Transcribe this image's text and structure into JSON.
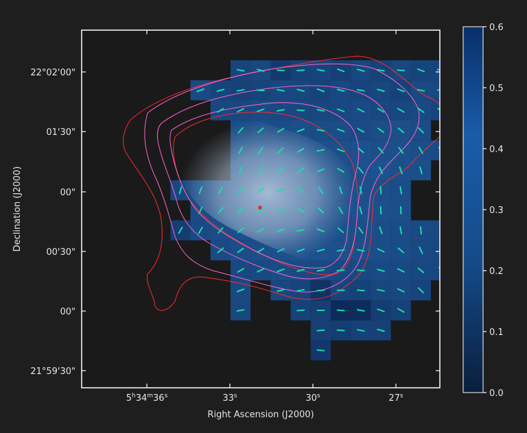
{
  "chart_data": {
    "type": "heatmap",
    "title": "",
    "xlabel": "Right Ascension (J2000)",
    "ylabel": "Declination (J2000)",
    "x_ticks": [
      {
        "label": "5h34m36s",
        "main": "5",
        "sup1": "h",
        "mid": "34",
        "sup2": "m",
        "end": "36",
        "sup3": "s"
      },
      {
        "label": "33s",
        "main": "33",
        "sup3": "s"
      },
      {
        "label": "30s",
        "main": "30",
        "sup3": "s"
      },
      {
        "label": "27s",
        "main": "27",
        "sup3": "s"
      }
    ],
    "y_ticks": [
      "22°02'00\"",
      "01'30\"",
      "00\"",
      "00'30\"",
      "00\"",
      "21°59'30\""
    ],
    "colorbar": {
      "min": 0.0,
      "max": 0.6,
      "ticks": [
        "0.6",
        "0.5",
        "0.4",
        "0.3",
        "0.2",
        "0.1",
        "0.0"
      ],
      "colormap": "Blues",
      "dark": "#0a2a5e",
      "light": "#dbe9f6"
    },
    "colors": {
      "frame": "#ffffff",
      "background": "#1e1e1e",
      "plot_background": "#1a1a1a",
      "contour_red": "#ff2a2a",
      "contour_pink": "#ff66cc",
      "vectors": "#19e0a8",
      "nebula": "#c8d6e6"
    },
    "grid_rows": [
      {
        "row": 0,
        "cols": [
          5,
          6,
          7,
          8,
          9,
          10,
          11,
          12,
          13,
          14,
          15
        ]
      },
      {
        "row": 1,
        "cols": [
          3,
          4,
          5,
          6,
          7,
          8,
          9,
          10,
          11,
          12,
          13,
          14,
          15
        ]
      },
      {
        "row": 2,
        "cols": [
          4,
          5,
          6,
          7,
          8,
          9,
          10,
          11,
          12,
          13,
          14,
          15,
          16
        ]
      },
      {
        "row": 3,
        "cols": [
          5,
          6,
          7,
          8,
          9,
          10,
          11,
          12,
          13,
          14,
          16
        ]
      },
      {
        "row": 4,
        "cols": [
          5,
          6,
          7,
          8,
          9,
          10,
          11,
          12,
          13,
          14,
          15
        ]
      },
      {
        "row": 5,
        "cols": [
          5,
          6,
          7,
          8,
          9,
          10,
          11,
          12,
          13,
          14
        ]
      },
      {
        "row": 6,
        "cols": [
          2,
          3,
          4,
          5,
          6,
          7,
          8,
          9,
          10,
          11,
          12,
          13
        ]
      },
      {
        "row": 7,
        "cols": [
          3,
          4,
          5,
          6,
          7,
          8,
          9,
          10,
          11,
          12,
          13
        ]
      },
      {
        "row": 8,
        "cols": [
          2,
          3,
          4,
          5,
          6,
          7,
          8,
          9,
          10,
          11,
          12,
          13,
          14,
          15
        ]
      },
      {
        "row": 9,
        "cols": [
          4,
          5,
          6,
          7,
          8,
          9,
          10,
          11,
          12,
          13,
          14,
          15
        ]
      },
      {
        "row": 10,
        "cols": [
          5,
          6,
          7,
          8,
          9,
          10,
          11,
          12,
          13,
          14,
          15
        ]
      },
      {
        "row": 11,
        "cols": [
          5,
          7,
          8,
          9,
          10,
          11,
          12,
          13,
          14
        ]
      },
      {
        "row": 12,
        "cols": [
          5,
          8,
          9,
          10,
          11,
          12,
          13
        ]
      },
      {
        "row": 13,
        "cols": [
          9,
          10,
          11,
          12
        ]
      },
      {
        "row": 14,
        "cols": [
          9
        ]
      }
    ],
    "values": [
      [
        0.38,
        0.36,
        0.46,
        0.4,
        0.38,
        0.42,
        0.37,
        0.4,
        0.36,
        0.39,
        0.38
      ],
      [
        0.33,
        0.38,
        0.4,
        0.38,
        0.35,
        0.37,
        0.39,
        0.36,
        0.38,
        0.37,
        0.4,
        0.34,
        0.36
      ],
      [
        0.35,
        0.36,
        0.33,
        0.34,
        0.36,
        0.37,
        0.35,
        0.33,
        0.36,
        0.35,
        0.34,
        0.38,
        0.36
      ],
      [
        0.31,
        0.3,
        0.31,
        0.3,
        0.32,
        0.31,
        0.33,
        0.31,
        0.3,
        0.32,
        0.35
      ],
      [
        0.3,
        0.29,
        0.28,
        0.28,
        0.29,
        0.3,
        0.28,
        0.3,
        0.29,
        0.31,
        0.33
      ],
      [
        0.29,
        0.28,
        0.27,
        0.27,
        0.28,
        0.29,
        0.28,
        0.27,
        0.29,
        0.3
      ],
      [
        0.36,
        0.31,
        0.3,
        0.29,
        0.27,
        0.28,
        0.28,
        0.27,
        0.28,
        0.29,
        0.3,
        0.31
      ],
      [
        0.32,
        0.3,
        0.29,
        0.28,
        0.27,
        0.26,
        0.27,
        0.28,
        0.28,
        0.29,
        0.3
      ],
      [
        0.44,
        0.33,
        0.31,
        0.3,
        0.29,
        0.28,
        0.27,
        0.28,
        0.29,
        0.3,
        0.31,
        0.32,
        0.33,
        0.36
      ],
      [
        0.33,
        0.31,
        0.3,
        0.29,
        0.28,
        0.28,
        0.29,
        0.3,
        0.31,
        0.32,
        0.34,
        0.36
      ],
      [
        0.35,
        0.34,
        0.32,
        0.33,
        0.34,
        0.35,
        0.34,
        0.33,
        0.34,
        0.35,
        0.37
      ],
      [
        0.34,
        0.36,
        0.38,
        0.52,
        0.38,
        0.4,
        0.37,
        0.36,
        0.38
      ],
      [
        0.36,
        0.4,
        0.42,
        0.58,
        0.56,
        0.44,
        0.4
      ],
      [
        0.42,
        0.44,
        0.4,
        0.41
      ],
      [
        0.48
      ]
    ],
    "vector_angles_deg": [
      [
        10,
        15,
        5,
        -5,
        10,
        20,
        15,
        10,
        5,
        20,
        15
      ],
      [
        -20,
        -15,
        -10,
        5,
        10,
        15,
        20,
        15,
        10,
        15,
        20,
        10,
        5
      ],
      [
        -30,
        -25,
        -20,
        -10,
        5,
        10,
        20,
        25,
        30,
        30,
        35,
        30,
        25
      ],
      [
        -50,
        -40,
        -30,
        -20,
        10,
        20,
        30,
        35,
        40,
        45,
        40
      ],
      [
        -60,
        -55,
        -45,
        -30,
        -10,
        20,
        40,
        50,
        55,
        60,
        55
      ],
      [
        -70,
        -65,
        -50,
        -40,
        -20,
        30,
        50,
        65,
        70,
        75
      ],
      [
        -75,
        -70,
        -60,
        -50,
        -35,
        -20,
        35,
        55,
        70,
        80,
        85,
        80
      ],
      [
        -65,
        -55,
        -45,
        -30,
        -20,
        30,
        45,
        60,
        75,
        85,
        88
      ],
      [
        -60,
        -60,
        -50,
        -40,
        -30,
        -20,
        -10,
        20,
        40,
        55,
        70,
        80,
        85,
        85
      ],
      [
        -40,
        -35,
        -30,
        -25,
        -20,
        -15,
        -10,
        10,
        25,
        40,
        65,
        80
      ],
      [
        -30,
        -25,
        -20,
        -15,
        -10,
        -5,
        5,
        15,
        25,
        40,
        60
      ],
      [
        -20,
        -15,
        -10,
        -5,
        0,
        5,
        10,
        25,
        45
      ],
      [
        -10,
        -5,
        0,
        5,
        10,
        20,
        30
      ],
      [
        -5,
        5,
        10,
        15
      ],
      [
        5
      ]
    ]
  }
}
